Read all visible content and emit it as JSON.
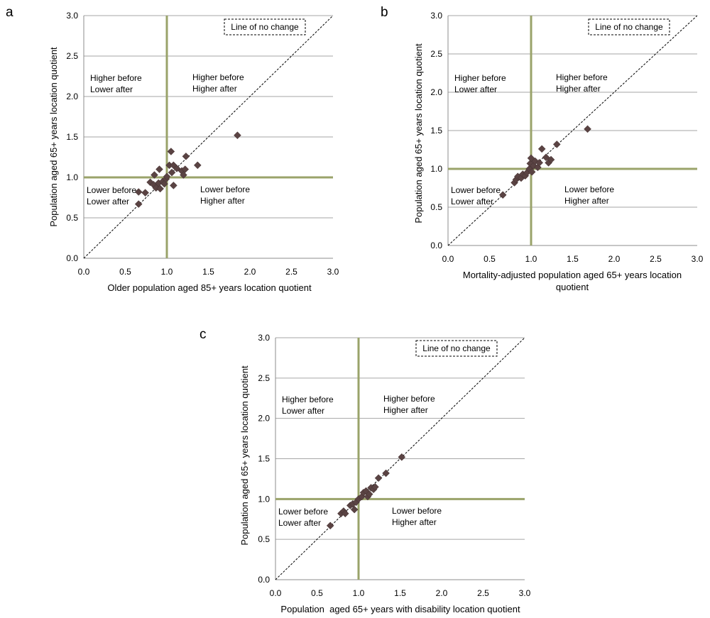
{
  "colors": {
    "reference_line": "#9aa36a",
    "gridline": "#a6a6a6",
    "marker": "#5a4343",
    "diagonal": "#000000"
  },
  "chart_data": [
    {
      "type": "scatter",
      "panel_letter": "a",
      "xlabel": "Older population aged 85+ years location quotient",
      "ylabel": "Population aged 65+ years location quotient",
      "xlim": [
        0,
        3.0
      ],
      "ylim": [
        0,
        3.0
      ],
      "x_ticks": [
        "0.0",
        "0.5",
        "1.0",
        "1.5",
        "2.0",
        "2.5",
        "3.0"
      ],
      "y_ticks": [
        "0.0",
        "0.5",
        "1.0",
        "1.5",
        "2.0",
        "2.5",
        "3.0"
      ],
      "grid": "horizontal",
      "reference_lines": {
        "x": 1.0,
        "y": 1.0
      },
      "diagonal_legend": "Line of no change",
      "legend_position": "top-right",
      "quadrant_labels": {
        "top_left": [
          "Higher before",
          "Lower after"
        ],
        "top_right": [
          "Higher before",
          "Higher after"
        ],
        "bottom_left": [
          "Lower before",
          "Lower after"
        ],
        "bottom_right": [
          "Lower before",
          "Higher after"
        ]
      },
      "points": [
        {
          "x": 0.66,
          "y": 0.82
        },
        {
          "x": 0.66,
          "y": 0.67
        },
        {
          "x": 0.74,
          "y": 0.81
        },
        {
          "x": 0.8,
          "y": 0.94
        },
        {
          "x": 0.84,
          "y": 0.91
        },
        {
          "x": 0.85,
          "y": 1.03
        },
        {
          "x": 0.87,
          "y": 0.87
        },
        {
          "x": 0.9,
          "y": 0.93
        },
        {
          "x": 0.91,
          "y": 1.1
        },
        {
          "x": 0.92,
          "y": 0.86
        },
        {
          "x": 0.95,
          "y": 0.95
        },
        {
          "x": 0.97,
          "y": 0.92
        },
        {
          "x": 0.99,
          "y": 0.98
        },
        {
          "x": 1.0,
          "y": 1.01
        },
        {
          "x": 1.03,
          "y": 1.15
        },
        {
          "x": 1.05,
          "y": 1.32
        },
        {
          "x": 1.06,
          "y": 1.06
        },
        {
          "x": 1.08,
          "y": 0.9
        },
        {
          "x": 1.08,
          "y": 1.15
        },
        {
          "x": 1.12,
          "y": 1.11
        },
        {
          "x": 1.18,
          "y": 1.08
        },
        {
          "x": 1.2,
          "y": 1.03
        },
        {
          "x": 1.22,
          "y": 1.1
        },
        {
          "x": 1.23,
          "y": 1.26
        },
        {
          "x": 1.37,
          "y": 1.15
        },
        {
          "x": 1.85,
          "y": 1.52
        }
      ]
    },
    {
      "type": "scatter",
      "panel_letter": "b",
      "xlabel": "Mortality-adjusted population aged 65+ years location quotient",
      "ylabel": "Population aged 65+ years location quotient",
      "xlim": [
        0,
        3.0
      ],
      "ylim": [
        0,
        3.0
      ],
      "x_ticks": [
        "0.0",
        "0.5",
        "1.0",
        "1.5",
        "2.0",
        "2.5",
        "3.0"
      ],
      "y_ticks": [
        "0.0",
        "0.5",
        "1.0",
        "1.5",
        "2.0",
        "2.5",
        "3.0"
      ],
      "grid": "horizontal",
      "reference_lines": {
        "x": 1.0,
        "y": 1.0
      },
      "diagonal_legend": "Line of no change",
      "legend_position": "top-right",
      "quadrant_labels": {
        "top_left": [
          "Higher before",
          "Lower after"
        ],
        "top_right": [
          "Higher before",
          "Higher after"
        ],
        "bottom_left": [
          "Lower before",
          "Lower after"
        ],
        "bottom_right": [
          "Lower before",
          "Higher after"
        ]
      },
      "points": [
        {
          "x": 0.66,
          "y": 0.66
        },
        {
          "x": 0.8,
          "y": 0.82
        },
        {
          "x": 0.82,
          "y": 0.86
        },
        {
          "x": 0.84,
          "y": 0.9
        },
        {
          "x": 0.88,
          "y": 0.88
        },
        {
          "x": 0.9,
          "y": 0.93
        },
        {
          "x": 0.93,
          "y": 0.91
        },
        {
          "x": 0.95,
          "y": 0.95
        },
        {
          "x": 0.98,
          "y": 1.0
        },
        {
          "x": 0.99,
          "y": 1.07
        },
        {
          "x": 1.0,
          "y": 1.14
        },
        {
          "x": 1.01,
          "y": 0.96
        },
        {
          "x": 1.03,
          "y": 1.04
        },
        {
          "x": 1.05,
          "y": 1.1
        },
        {
          "x": 1.08,
          "y": 1.02
        },
        {
          "x": 1.1,
          "y": 1.08
        },
        {
          "x": 1.13,
          "y": 1.26
        },
        {
          "x": 1.18,
          "y": 1.15
        },
        {
          "x": 1.21,
          "y": 1.08
        },
        {
          "x": 1.24,
          "y": 1.12
        },
        {
          "x": 1.31,
          "y": 1.32
        },
        {
          "x": 1.68,
          "y": 1.52
        }
      ]
    },
    {
      "type": "scatter",
      "panel_letter": "c",
      "xlabel": "Population  aged 65+ years with disability location quotient",
      "ylabel": "Population aged 65+ years location quotient",
      "xlim": [
        0,
        3.0
      ],
      "ylim": [
        0,
        3.0
      ],
      "x_ticks": [
        "0.0",
        "0.5",
        "1.0",
        "1.5",
        "2.0",
        "2.5",
        "3.0"
      ],
      "y_ticks": [
        "0.0",
        "0.5",
        "1.0",
        "1.5",
        "2.0",
        "2.5",
        "3.0"
      ],
      "grid": "horizontal",
      "reference_lines": {
        "x": 1.0,
        "y": 1.0
      },
      "diagonal_legend": "Line of no change",
      "legend_position": "top-right",
      "quadrant_labels": {
        "top_left": [
          "Higher before",
          "Lower after"
        ],
        "top_right": [
          "Higher before",
          "Higher after"
        ],
        "bottom_left": [
          "Lower before",
          "Lower after"
        ],
        "bottom_right": [
          "Lower before",
          "Higher after"
        ]
      },
      "points": [
        {
          "x": 0.66,
          "y": 0.67
        },
        {
          "x": 0.79,
          "y": 0.82
        },
        {
          "x": 0.82,
          "y": 0.85
        },
        {
          "x": 0.84,
          "y": 0.82
        },
        {
          "x": 0.9,
          "y": 0.92
        },
        {
          "x": 0.93,
          "y": 0.94
        },
        {
          "x": 0.95,
          "y": 0.87
        },
        {
          "x": 0.97,
          "y": 0.96
        },
        {
          "x": 1.0,
          "y": 1.0
        },
        {
          "x": 1.04,
          "y": 1.03
        },
        {
          "x": 1.06,
          "y": 1.08
        },
        {
          "x": 1.09,
          "y": 1.1
        },
        {
          "x": 1.11,
          "y": 1.03
        },
        {
          "x": 1.13,
          "y": 1.06
        },
        {
          "x": 1.15,
          "y": 1.14
        },
        {
          "x": 1.18,
          "y": 1.12
        },
        {
          "x": 1.2,
          "y": 1.15
        },
        {
          "x": 1.24,
          "y": 1.26
        },
        {
          "x": 1.33,
          "y": 1.32
        },
        {
          "x": 1.52,
          "y": 1.52
        }
      ]
    }
  ]
}
